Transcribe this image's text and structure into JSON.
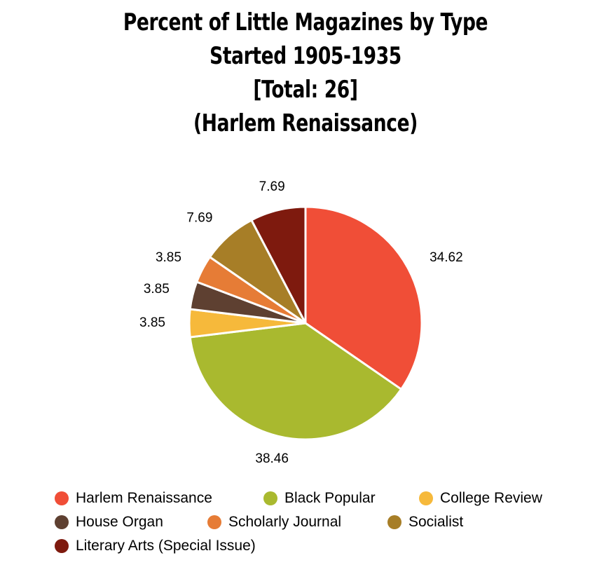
{
  "chart_data": {
    "type": "pie",
    "title_lines": [
      "Percent of Little Magazines by Type",
      "Started 1905-1935",
      "[Total: 26]",
      "(Harlem Renaissance)"
    ],
    "categories": [
      "Harlem Renaissance",
      "Black Popular",
      "College Review",
      "House Organ",
      "Scholarly Journal",
      "Socialist",
      "Literary Arts (Special Issue)"
    ],
    "values": [
      34.62,
      38.46,
      3.85,
      3.85,
      3.85,
      7.69,
      7.69
    ],
    "value_labels": [
      "34.62",
      "38.46",
      "3.85",
      "3.85",
      "3.85",
      "7.69",
      "7.69"
    ],
    "colors": [
      "#f04e37",
      "#a9b92f",
      "#f6b93b",
      "#5e4031",
      "#e67c36",
      "#a77e27",
      "#7e1a0e"
    ],
    "legend_position": "bottom"
  }
}
